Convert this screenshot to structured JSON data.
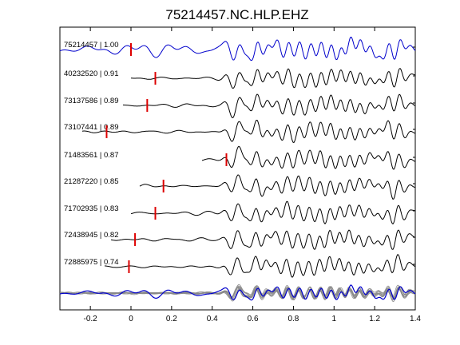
{
  "chart_data": {
    "type": "line",
    "title": "75214457.NC.HLP.EHZ",
    "xlabel": "",
    "ylabel": "",
    "xlim": [
      -0.35,
      1.4
    ],
    "x_ticks": [
      "-0.2",
      "0",
      "0.2",
      "0.4",
      "0.6",
      "0.8",
      "1",
      "1.2",
      "1.4"
    ],
    "x_tick_values": [
      -0.2,
      0,
      0.2,
      0.4,
      0.6,
      0.8,
      1,
      1.2,
      1.4
    ],
    "grid": false,
    "colors": {
      "reference": "#0000cc",
      "match": "#000000",
      "marker": "#dd0000",
      "stack": "#888888"
    },
    "series": [
      {
        "name": "75214457 | 1.00",
        "pick_time": 0.0,
        "color": "blue"
      },
      {
        "name": "40232520 | 0.91",
        "pick_time": 0.12,
        "color": "black"
      },
      {
        "name": "73137586 | 0.89",
        "pick_time": 0.08,
        "color": "black"
      },
      {
        "name": "73107441 | 0.89",
        "pick_time": -0.12,
        "color": "black"
      },
      {
        "name": "71483561 | 0.87",
        "pick_time": 0.47,
        "color": "black"
      },
      {
        "name": "21287220 | 0.85",
        "pick_time": 0.16,
        "color": "black"
      },
      {
        "name": "71702935 | 0.83",
        "pick_time": 0.12,
        "color": "black"
      },
      {
        "name": "72438945 | 0.82",
        "pick_time": 0.02,
        "color": "black"
      },
      {
        "name": "72885975 | 0.74",
        "pick_time": -0.01,
        "color": "black"
      }
    ],
    "overlay": {
      "description": "all traces overlaid",
      "colors": [
        "#0000cc",
        "#888888"
      ]
    }
  }
}
